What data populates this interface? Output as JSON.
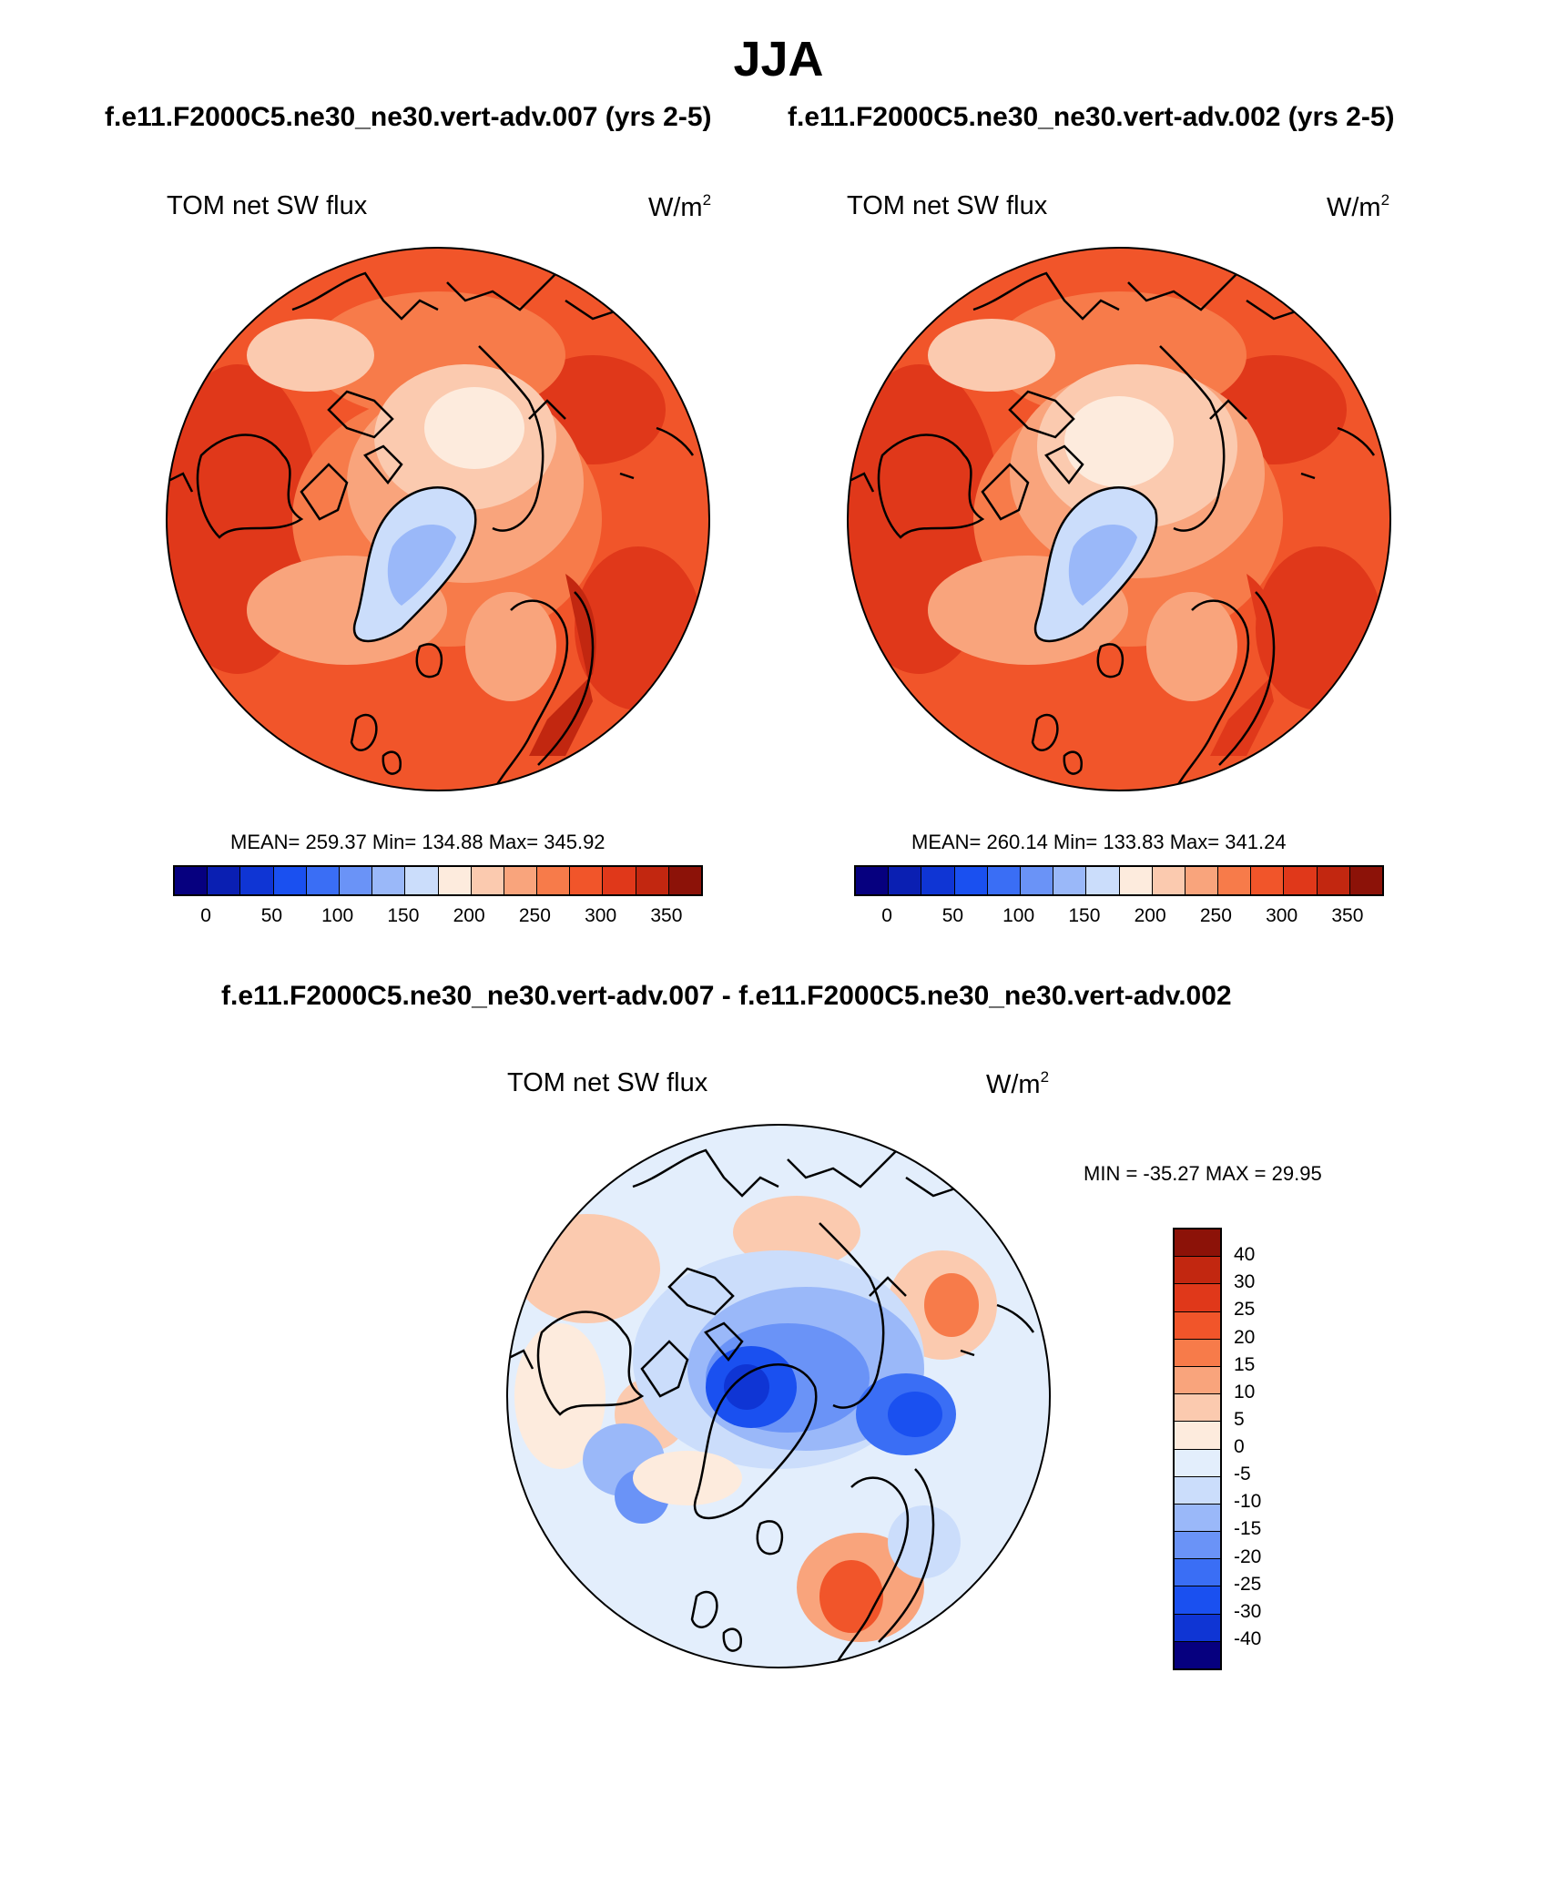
{
  "season": "JJA",
  "header": {
    "case_a": "f.e11.F2000C5.ne30_ne30.vert-adv.007 (yrs 2-5)",
    "case_b": "f.e11.F2000C5.ne30_ne30.vert-adv.002 (yrs 2-5)",
    "diff_title": "f.e11.F2000C5.ne30_ne30.vert-adv.007 - f.e11.F2000C5.ne30_ne30.vert-adv.002"
  },
  "panels": {
    "left": {
      "variable": "TOM net SW flux",
      "units": "W/m",
      "units_sup": "2",
      "stats": "MEAN= 259.37  Min= 134.88  Max= 345.92"
    },
    "right": {
      "variable": "TOM net SW flux",
      "units": "W/m",
      "units_sup": "2",
      "stats": "MEAN= 260.14  Min= 133.83  Max= 341.24"
    },
    "diff": {
      "variable": "TOM net SW flux",
      "units": "W/m",
      "units_sup": "2",
      "stats": "MIN = -35.27 MAX =  29.95"
    }
  },
  "colorbars": {
    "abs_colors": [
      "#06007f",
      "#0a1fb2",
      "#0f35d4",
      "#1a50f0",
      "#3a6ef5",
      "#6a93f7",
      "#9ab8f9",
      "#cbddfb",
      "#fdebdd",
      "#fbcaaf",
      "#f9a47c",
      "#f77b4a",
      "#f1552a",
      "#e0381a",
      "#c22710",
      "#8c1208"
    ],
    "abs_ticks": [
      "0",
      "50",
      "100",
      "150",
      "200",
      "250",
      "300",
      "350"
    ],
    "diff_colors": [
      "#8c1208",
      "#c22710",
      "#e0381a",
      "#f1552a",
      "#f77b4a",
      "#f9a47c",
      "#fbcaaf",
      "#fdebdd",
      "#e3eefc",
      "#cbddfb",
      "#9ab8f9",
      "#6a93f7",
      "#3a6ef5",
      "#1a50f0",
      "#0f35d4",
      "#06007f"
    ],
    "diff_ticks": [
      "40",
      "30",
      "25",
      "20",
      "15",
      "10",
      "5",
      "0",
      "-5",
      "-10",
      "-15",
      "-20",
      "-25",
      "-30",
      "-40"
    ]
  }
}
